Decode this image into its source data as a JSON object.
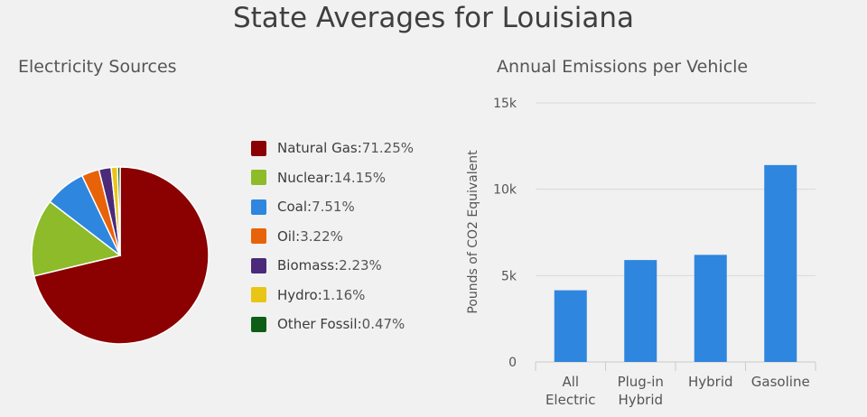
{
  "page_title": "State Averages for Louisiana",
  "chart_data": [
    {
      "type": "pie",
      "title": "Electricity Sources",
      "legend_position": "right",
      "slices": [
        {
          "label": "Natural Gas",
          "value": 71.25,
          "value_label": "71.25%",
          "color": "#8b0000"
        },
        {
          "label": "Nuclear",
          "value": 14.15,
          "value_label": "14.15%",
          "color": "#8dbb2a"
        },
        {
          "label": "Coal",
          "value": 7.51,
          "value_label": "7.51%",
          "color": "#2e86de"
        },
        {
          "label": "Oil",
          "value": 3.22,
          "value_label": "3.22%",
          "color": "#e8620a"
        },
        {
          "label": "Biomass",
          "value": 2.23,
          "value_label": "2.23%",
          "color": "#4b2a7a"
        },
        {
          "label": "Hydro",
          "value": 1.16,
          "value_label": "1.16%",
          "color": "#e9c515"
        },
        {
          "label": "Other Fossil",
          "value": 0.47,
          "value_label": "0.47%",
          "color": "#0f5e16"
        }
      ]
    },
    {
      "type": "bar",
      "title": "Annual Emissions per Vehicle",
      "ylabel": "Pounds of CO2 Equivalent",
      "categories": [
        [
          "All",
          "Electric"
        ],
        [
          "Plug-in",
          "Hybrid"
        ],
        [
          "Hybrid"
        ],
        [
          "Gasoline"
        ]
      ],
      "values": [
        4150,
        5900,
        6200,
        11400
      ],
      "ylim": [
        0,
        15000
      ],
      "yticks": [
        0,
        5000,
        10000,
        15000
      ],
      "ytick_labels": [
        "0",
        "5k",
        "10k",
        "15k"
      ],
      "grid": true,
      "bar_color": "#2e86de"
    }
  ]
}
